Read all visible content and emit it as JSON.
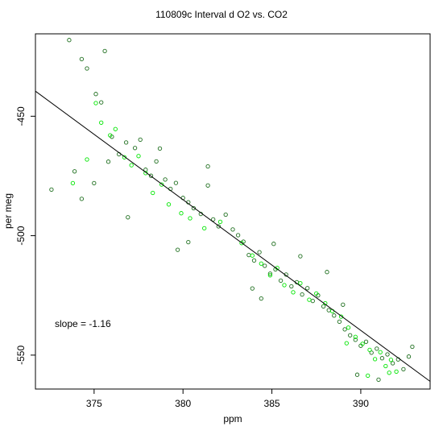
{
  "chart_data": {
    "type": "scatter",
    "title": "110809c   Interval d O2 vs. CO2",
    "xlabel": "ppm",
    "ylabel": "per meg",
    "xlim": [
      371.7,
      393.9
    ],
    "ylim": [
      -564.2,
      -415.5
    ],
    "x_ticks": [
      375,
      380,
      385,
      390
    ],
    "y_ticks": [
      -450,
      -500,
      -550
    ],
    "annotation": "slope =  -1.16",
    "fit_line": {
      "slope": -1.16,
      "points": [
        [
          371.7,
          -439.5
        ],
        [
          393.9,
          -561.0
        ]
      ]
    },
    "colors": {
      "dark": "#1f6f1f",
      "bright": "#00e600",
      "line": "#000000"
    },
    "series": [
      {
        "name": "dark",
        "points": [
          [
            373.6,
            -418.1
          ],
          [
            374.3,
            -426.1
          ],
          [
            375.6,
            -422.7
          ],
          [
            374.6,
            -430.0
          ],
          [
            375.1,
            -440.7
          ],
          [
            375.4,
            -444.2
          ],
          [
            372.6,
            -480.7
          ],
          [
            373.9,
            -473.1
          ],
          [
            374.3,
            -484.6
          ],
          [
            375.0,
            -478.0
          ],
          [
            375.8,
            -469.0
          ],
          [
            376.0,
            -458.6
          ],
          [
            376.4,
            -465.9
          ],
          [
            376.8,
            -461.0
          ],
          [
            377.3,
            -463.3
          ],
          [
            377.6,
            -459.8
          ],
          [
            377.9,
            -472.4
          ],
          [
            378.2,
            -474.9
          ],
          [
            378.5,
            -468.9
          ],
          [
            378.7,
            -463.5
          ],
          [
            379.0,
            -476.5
          ],
          [
            379.3,
            -480.4
          ],
          [
            379.6,
            -477.9
          ],
          [
            380.0,
            -484.2
          ],
          [
            380.3,
            -486.0
          ],
          [
            380.6,
            -488.5
          ],
          [
            381.0,
            -490.9
          ],
          [
            381.4,
            -479.0
          ],
          [
            381.7,
            -493.2
          ],
          [
            382.0,
            -496.1
          ],
          [
            382.4,
            -491.2
          ],
          [
            382.8,
            -497.4
          ],
          [
            383.1,
            -499.8
          ],
          [
            383.4,
            -502.5
          ],
          [
            383.7,
            -508.1
          ],
          [
            384.0,
            -510.4
          ],
          [
            384.3,
            -506.9
          ],
          [
            384.6,
            -512.6
          ],
          [
            384.9,
            -515.9
          ],
          [
            385.2,
            -514.1
          ],
          [
            385.5,
            -518.8
          ],
          [
            385.8,
            -516.3
          ],
          [
            386.1,
            -521.2
          ],
          [
            386.4,
            -519.5
          ],
          [
            386.7,
            -524.6
          ],
          [
            387.0,
            -522.0
          ],
          [
            387.3,
            -527.3
          ],
          [
            387.6,
            -525.0
          ],
          [
            387.9,
            -529.6
          ],
          [
            388.2,
            -531.2
          ],
          [
            388.5,
            -533.4
          ],
          [
            388.8,
            -536.0
          ],
          [
            389.1,
            -539.2
          ],
          [
            389.4,
            -541.7
          ],
          [
            389.7,
            -543.6
          ],
          [
            390.0,
            -546.1
          ],
          [
            390.3,
            -544.4
          ],
          [
            390.6,
            -549.0
          ],
          [
            390.9,
            -547.3
          ],
          [
            391.2,
            -551.3
          ],
          [
            391.5,
            -549.7
          ],
          [
            391.8,
            -553.4
          ],
          [
            392.1,
            -551.8
          ],
          [
            392.4,
            -555.9
          ],
          [
            392.7,
            -550.6
          ],
          [
            389.8,
            -558.2
          ],
          [
            391.0,
            -560.3
          ],
          [
            392.9,
            -546.5
          ],
          [
            383.9,
            -522.1
          ],
          [
            384.4,
            -526.3
          ],
          [
            385.1,
            -503.4
          ],
          [
            386.6,
            -508.6
          ],
          [
            388.1,
            -515.2
          ],
          [
            389.0,
            -528.9
          ],
          [
            380.3,
            -502.7
          ],
          [
            379.7,
            -505.9
          ],
          [
            381.4,
            -471.0
          ],
          [
            376.9,
            -492.3
          ]
        ]
      },
      {
        "name": "bright",
        "points": [
          [
            375.1,
            -444.5
          ],
          [
            375.4,
            -452.7
          ],
          [
            375.9,
            -458.0
          ],
          [
            376.2,
            -455.4
          ],
          [
            376.7,
            -467.2
          ],
          [
            377.1,
            -470.5
          ],
          [
            377.5,
            -466.7
          ],
          [
            377.9,
            -473.8
          ],
          [
            378.3,
            -482.1
          ],
          [
            378.8,
            -478.6
          ],
          [
            379.2,
            -486.9
          ],
          [
            379.9,
            -490.6
          ],
          [
            380.4,
            -492.7
          ],
          [
            381.2,
            -496.9
          ],
          [
            382.1,
            -494.2
          ],
          [
            383.3,
            -503.1
          ],
          [
            383.9,
            -508.3
          ],
          [
            384.4,
            -511.7
          ],
          [
            384.9,
            -516.6
          ],
          [
            385.3,
            -513.5
          ],
          [
            385.7,
            -520.7
          ],
          [
            386.2,
            -523.7
          ],
          [
            386.6,
            -519.9
          ],
          [
            387.1,
            -526.8
          ],
          [
            387.5,
            -524.2
          ],
          [
            388.0,
            -528.3
          ],
          [
            388.4,
            -531.6
          ],
          [
            388.9,
            -533.9
          ],
          [
            389.3,
            -538.5
          ],
          [
            389.7,
            -542.4
          ],
          [
            390.1,
            -545.3
          ],
          [
            390.5,
            -547.8
          ],
          [
            390.8,
            -551.7
          ],
          [
            391.1,
            -548.8
          ],
          [
            391.4,
            -554.6
          ],
          [
            391.7,
            -552.0
          ],
          [
            392.0,
            -556.9
          ],
          [
            390.4,
            -558.6
          ],
          [
            391.6,
            -557.4
          ],
          [
            389.2,
            -545.0
          ],
          [
            374.6,
            -468.1
          ],
          [
            373.8,
            -478.0
          ]
        ]
      }
    ]
  }
}
